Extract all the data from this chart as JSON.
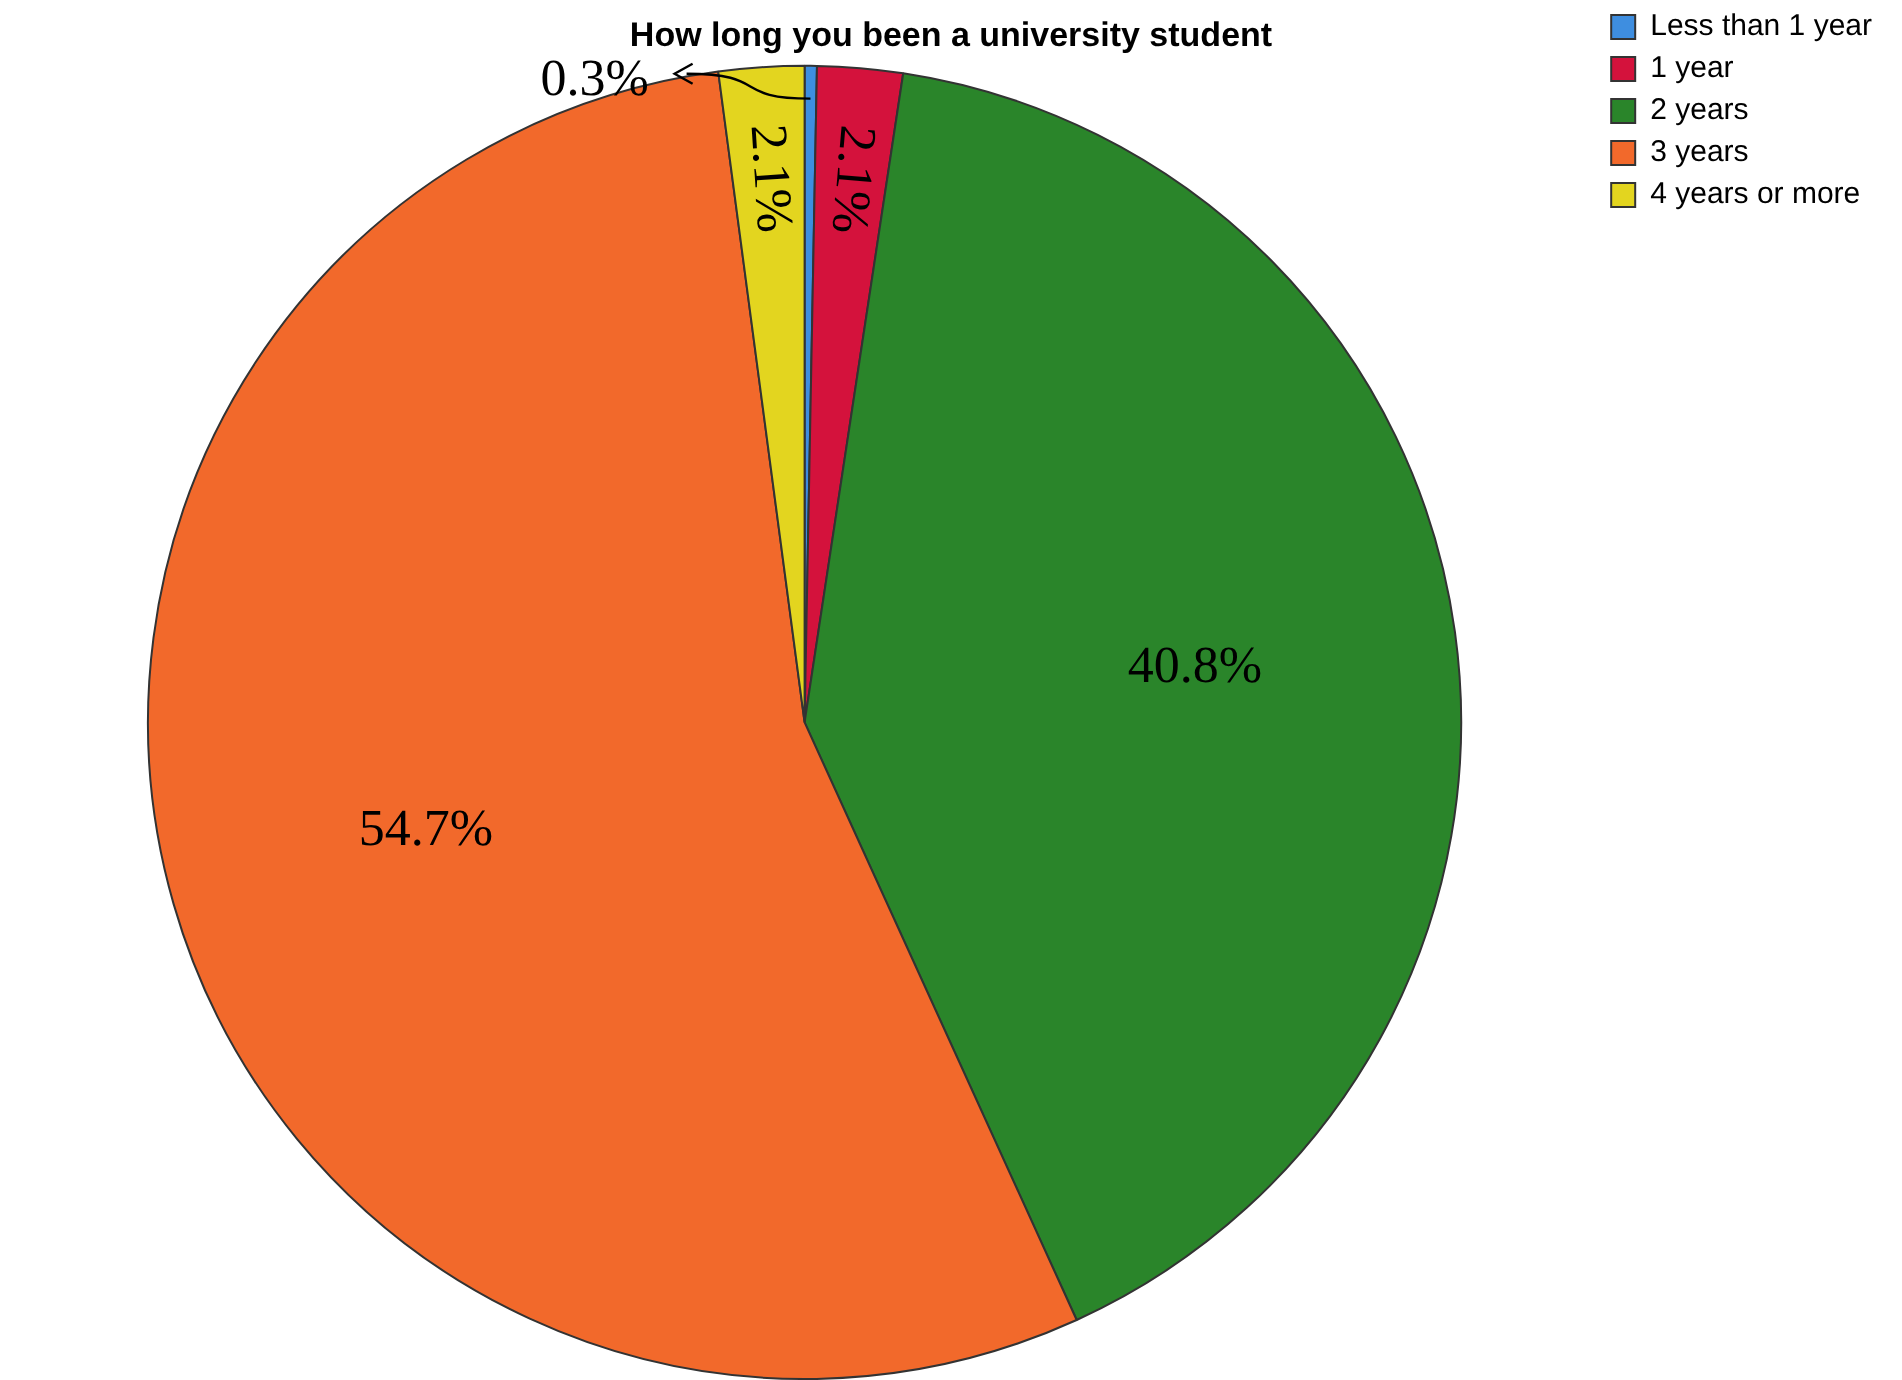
{
  "chart_data": {
    "type": "pie",
    "title": "How long you been a university student",
    "categories": [
      "Less than 1 year",
      "1 year",
      "2 years",
      "3 years",
      "4 years or more"
    ],
    "values": [
      0.3,
      2.1,
      40.8,
      54.7,
      2.1
    ],
    "colors": [
      "#3e8ee0",
      "#d4123c",
      "#2a852a",
      "#f2692b",
      "#e3d51f"
    ],
    "value_labels": [
      "0.3%",
      "2.1%",
      "40.8%",
      "54.7%",
      "2.1%"
    ],
    "legend": "top right"
  }
}
